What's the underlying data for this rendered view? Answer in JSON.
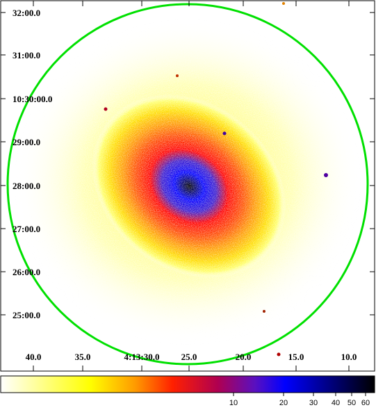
{
  "image": {
    "ra_tick_labels": [
      "40.0",
      "35.0",
      "4:13:30.0",
      "25.0",
      "20.0",
      "15.0",
      "10.0"
    ],
    "dec_tick_labels": [
      "32:00.0",
      "31:00.0",
      "10:30:00.0",
      "29:00.0",
      "28:00.0",
      "27:00.0",
      "26:00.0",
      "25:00.0"
    ],
    "region_color": "#00e000",
    "frame_color": "#000000"
  },
  "colorbar": {
    "tick_labels": [
      "10",
      "20",
      "30",
      "40",
      "50",
      "60"
    ],
    "colormap": [
      "#ffffff",
      "#ffff00",
      "#ff8000",
      "#ff0000",
      "#ff00ff",
      "#0000ff",
      "#000000"
    ]
  }
}
